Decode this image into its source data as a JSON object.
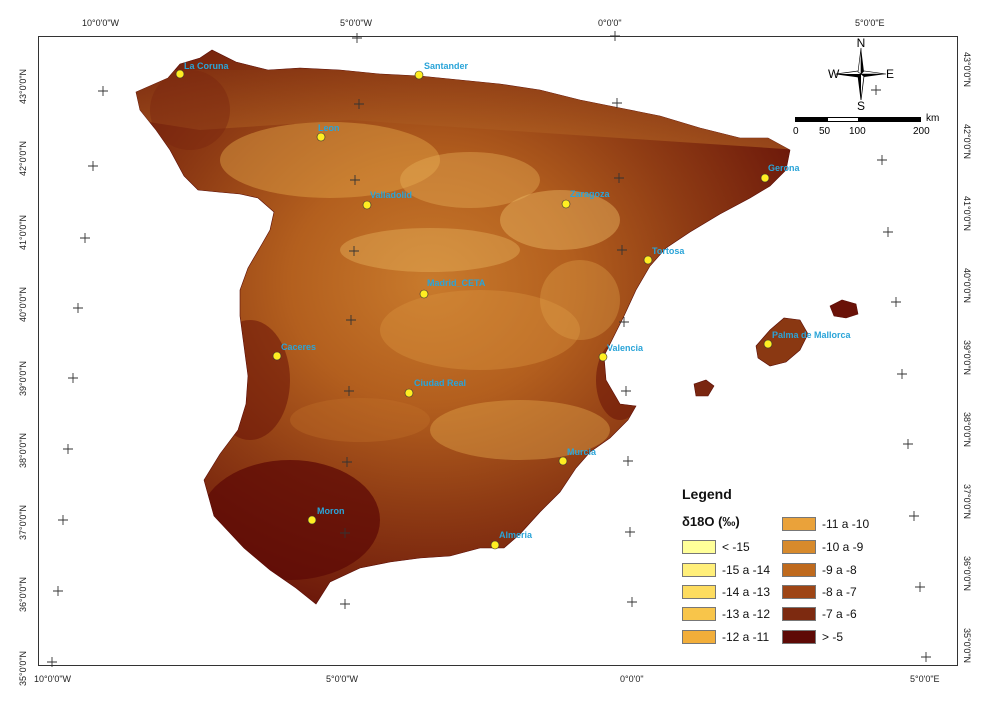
{
  "graticule": {
    "top_labels": [
      "10°0'0\"W",
      "5°0'0\"W",
      "0°0'0\"",
      "5°0'0\"E"
    ],
    "bottom_labels": [
      "10°0'0\"W",
      "5°0'0\"W",
      "0°0'0\"",
      "5°0'0\"E"
    ],
    "left_labels": [
      "43°0'0\"N",
      "42°0'0\"N",
      "41°0'0\"N",
      "40°0'0\"N",
      "39°0'0\"N",
      "38°0'0\"N",
      "37°0'0\"N",
      "36°0'0\"N",
      "35°0'0\"N"
    ],
    "right_labels": [
      "43°0'0\"N",
      "42°0'0\"N",
      "41°0'0\"N",
      "40°0'0\"N",
      "39°0'0\"N",
      "38°0'0\"N",
      "37°0'0\"N",
      "36°0'0\"N",
      "35°0'0\"N"
    ]
  },
  "cities": [
    {
      "name": "La Coruna"
    },
    {
      "name": "Santander"
    },
    {
      "name": "Leon"
    },
    {
      "name": "Gerona"
    },
    {
      "name": "Valladolid"
    },
    {
      "name": "Zaragoza"
    },
    {
      "name": "Tortosa"
    },
    {
      "name": "Madrid_CETA"
    },
    {
      "name": "Palma de Mallorca"
    },
    {
      "name": "Caceres"
    },
    {
      "name": "Valencia"
    },
    {
      "name": "Ciudad Real"
    },
    {
      "name": "Murcia"
    },
    {
      "name": "Moron"
    },
    {
      "name": "Almeria"
    }
  ],
  "compass": {
    "n": "N",
    "s": "S",
    "e": "E",
    "w": "W"
  },
  "scale": {
    "labels": [
      "0",
      "50",
      "100",
      "200"
    ],
    "unit": "km"
  },
  "legend": {
    "title": "Legend",
    "subtitle": "δ18O (‰)",
    "items": [
      {
        "label": "< -15",
        "color": "#ffff99"
      },
      {
        "label": "-15 a -14",
        "color": "#ffef7a"
      },
      {
        "label": "-14 a -13",
        "color": "#fddc5f"
      },
      {
        "label": "-13 a -12",
        "color": "#f8c54a"
      },
      {
        "label": "-12 a -11",
        "color": "#f2ae3a"
      },
      {
        "label": "-11 a -10",
        "color": "#eaa23a"
      },
      {
        "label": "-10 a -9",
        "color": "#d78a2c"
      },
      {
        "label": "-9 a -8",
        "color": "#bf6a1d"
      },
      {
        "label": "-8 a -7",
        "color": "#9e4515"
      },
      {
        "label": "-7 a -6",
        "color": "#7d2a10"
      },
      {
        "label": "> -5",
        "color": "#5e0a06"
      }
    ]
  }
}
